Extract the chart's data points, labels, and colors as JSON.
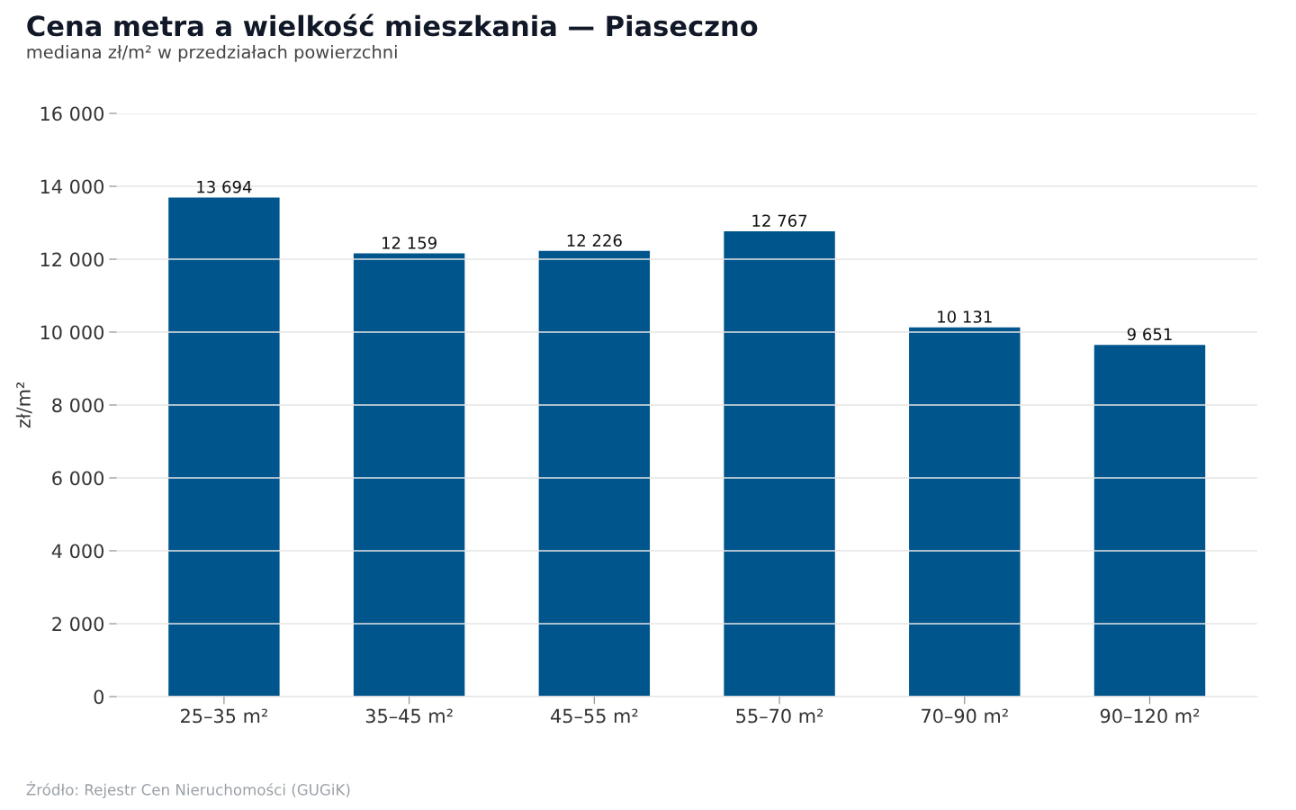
{
  "chart_data": {
    "type": "bar",
    "title": "Cena metra a wielkość mieszkania — Piaseczno",
    "subtitle": "mediana zł/m² w przedziałach powierzchni",
    "ylabel": "zł/m²",
    "categories": [
      "25–35 m²",
      "35–45 m²",
      "45–55 m²",
      "55–70 m²",
      "70–90 m²",
      "90–120 m²"
    ],
    "values": [
      13694,
      12159,
      12226,
      12767,
      10131,
      9651
    ],
    "value_labels": [
      "13 694",
      "12 159",
      "12 226",
      "12 767",
      "10 131",
      "9 651"
    ],
    "color": "#00558c",
    "ylim": [
      0,
      16000
    ],
    "yticks": [
      {
        "value": 0,
        "label": "0"
      },
      {
        "value": 2000,
        "label": "2 000"
      },
      {
        "value": 4000,
        "label": "4 000"
      },
      {
        "value": 6000,
        "label": "6 000"
      },
      {
        "value": 8000,
        "label": "8 000"
      },
      {
        "value": 10000,
        "label": "10 000"
      },
      {
        "value": 12000,
        "label": "12 000"
      },
      {
        "value": 14000,
        "label": "14 000"
      },
      {
        "value": 16000,
        "label": "16 000"
      }
    ],
    "grid": "y",
    "annotations": [
      "Źródło: Rejestr Cen Nieruchomości (GUGiK)"
    ]
  }
}
